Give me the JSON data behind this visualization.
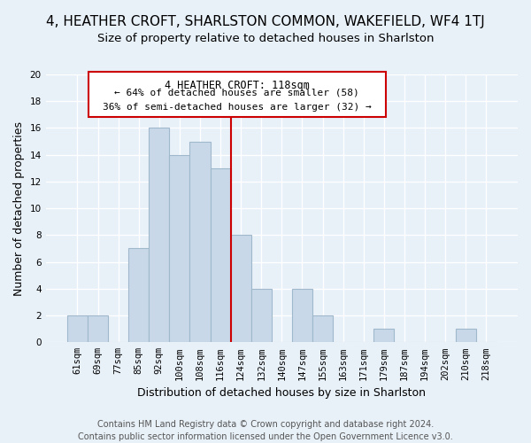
{
  "title": "4, HEATHER CROFT, SHARLSTON COMMON, WAKEFIELD, WF4 1TJ",
  "subtitle": "Size of property relative to detached houses in Sharlston",
  "xlabel": "Distribution of detached houses by size in Sharlston",
  "ylabel": "Number of detached properties",
  "bar_labels": [
    "61sqm",
    "69sqm",
    "77sqm",
    "85sqm",
    "92sqm",
    "100sqm",
    "108sqm",
    "116sqm",
    "124sqm",
    "132sqm",
    "140sqm",
    "147sqm",
    "155sqm",
    "163sqm",
    "171sqm",
    "179sqm",
    "187sqm",
    "194sqm",
    "202sqm",
    "210sqm",
    "218sqm"
  ],
  "bar_values": [
    2,
    2,
    0,
    7,
    16,
    14,
    15,
    13,
    8,
    4,
    0,
    4,
    2,
    0,
    0,
    1,
    0,
    0,
    0,
    1,
    0
  ],
  "bar_color": "#c8d8e8",
  "bar_edge_color": "#a0b8cc",
  "reference_line_label": "116sqm",
  "reference_line_color": "#cc0000",
  "annotation_title": "4 HEATHER CROFT: 118sqm",
  "annotation_line1": "← 64% of detached houses are smaller (58)",
  "annotation_line2": "36% of semi-detached houses are larger (32) →",
  "annotation_box_color": "#ffffff",
  "annotation_box_edge_color": "#cc0000",
  "ylim": [
    0,
    20
  ],
  "yticks": [
    0,
    2,
    4,
    6,
    8,
    10,
    12,
    14,
    16,
    18,
    20
  ],
  "footer_line1": "Contains HM Land Registry data © Crown copyright and database right 2024.",
  "footer_line2": "Contains public sector information licensed under the Open Government Licence v3.0.",
  "background_color": "#e8f0f8",
  "grid_color": "#ffffff",
  "title_fontsize": 11,
  "subtitle_fontsize": 9.5,
  "axis_label_fontsize": 9,
  "tick_fontsize": 7.5,
  "footer_fontsize": 7
}
